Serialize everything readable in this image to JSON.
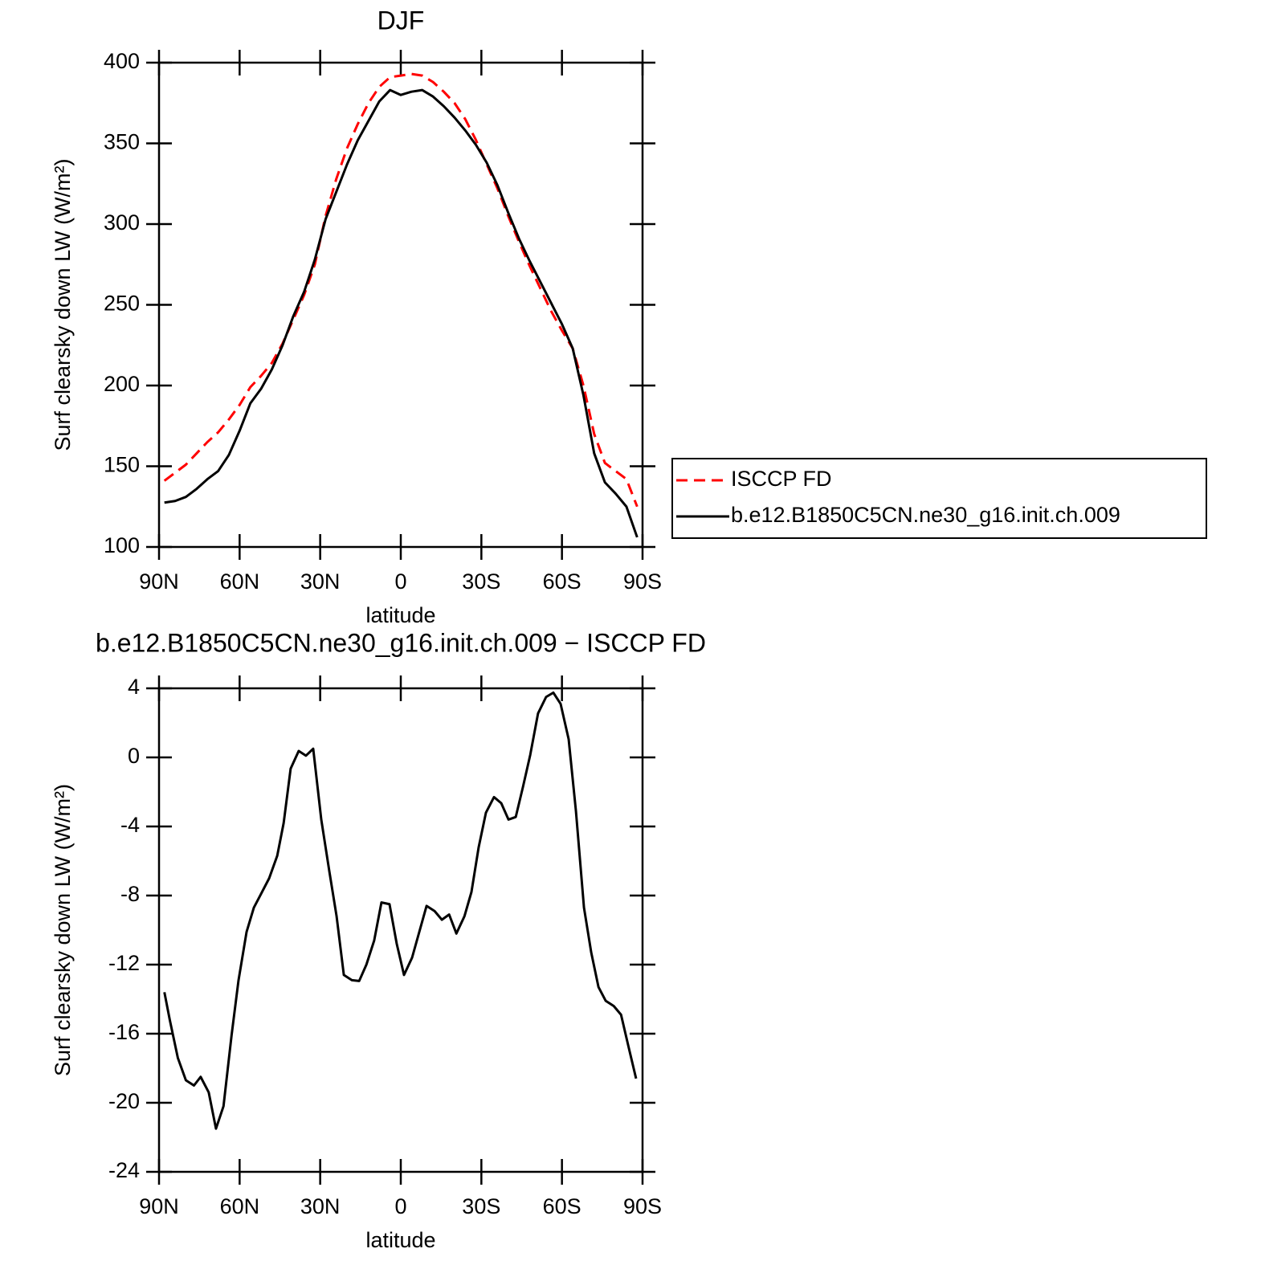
{
  "chart_data": [
    {
      "type": "line",
      "title": "DJF",
      "xlabel": "latitude",
      "ylabel": "Surf clearsky down LW (W/m²)",
      "x": [
        88,
        84,
        80,
        76,
        72,
        68,
        64,
        60,
        56,
        52,
        48,
        44,
        40,
        36,
        32,
        28,
        24,
        20,
        16,
        12,
        8,
        4,
        0,
        -4,
        -8,
        -12,
        -16,
        -20,
        -24,
        -28,
        -32,
        -36,
        -40,
        -44,
        -48,
        -52,
        -56,
        -60,
        -64,
        -68,
        -72,
        -76,
        -80,
        -84,
        -88
      ],
      "series": [
        {
          "name": "ISCCP FD",
          "color": "#ff0000",
          "dashed": true,
          "values": [
            141,
            146,
            151,
            158,
            165,
            171,
            179,
            188,
            199,
            206,
            214,
            226,
            241,
            256,
            275,
            305,
            328,
            347,
            362,
            375,
            385,
            391,
            392,
            393,
            392,
            388,
            382,
            375,
            365,
            352,
            337,
            322,
            305,
            289,
            274,
            260,
            246,
            234,
            223,
            200,
            170,
            152,
            147,
            142,
            125
          ]
        },
        {
          "name": "b.e12.B1850C5CN.ne30_g16.init.ch.009",
          "color": "#000000",
          "dashed": false,
          "values": [
            127.5,
            128.5,
            131,
            136,
            142,
            147,
            157,
            172,
            189,
            198,
            210,
            225,
            243,
            258,
            278,
            303,
            320,
            337,
            352,
            364,
            376,
            383,
            380,
            382,
            383,
            379,
            373,
            366,
            358,
            349,
            338,
            324,
            307,
            291,
            277,
            264,
            251,
            238,
            223,
            194,
            158,
            140,
            133,
            125,
            106
          ]
        }
      ],
      "xlim": [
        90,
        -90
      ],
      "xticks": [
        {
          "value": 90,
          "label": "90N"
        },
        {
          "value": 60,
          "label": "60N"
        },
        {
          "value": 30,
          "label": "30N"
        },
        0,
        {
          "value": -30,
          "label": "30S"
        },
        {
          "value": -60,
          "label": "60S"
        },
        {
          "value": -90,
          "label": "90S"
        }
      ],
      "ylim": [
        100,
        400
      ],
      "yticks": [
        100,
        150,
        200,
        250,
        300,
        350,
        400
      ],
      "legend": "right"
    },
    {
      "type": "line",
      "title": "b.e12.B1850C5CN.ne30_g16.init.ch.009 − ISCCP FD",
      "xlabel": "latitude",
      "ylabel": "Surf clearsky down LW (W/m²)",
      "x": [
        88,
        86,
        83,
        80,
        77,
        74.5,
        71.5,
        68.8,
        66,
        63,
        60.4,
        57.4,
        54.7,
        52,
        49,
        46,
        43.6,
        41,
        38,
        35.3,
        32.6,
        29.6,
        26.6,
        23.9,
        21.2,
        18.2,
        15.5,
        12.8,
        9.9,
        7.2,
        4.2,
        1.5,
        -1.2,
        -4.2,
        -6.9,
        -9.6,
        -12.6,
        -15.3,
        -18,
        -20.7,
        -23.7,
        -26.3,
        -29,
        -31.7,
        -34.7,
        -37.4,
        -40.1,
        -42.8,
        -45.5,
        -48.2,
        -51.1,
        -54.1,
        -56.8,
        -59.5,
        -62.5,
        -65.2,
        -68.2,
        -70.9,
        -73.6,
        -76.3,
        -79.3,
        -82,
        -84.7,
        -87.6
      ],
      "color": "#000000",
      "values": [
        -13.6,
        -15.2,
        -17.4,
        -18.7,
        -19.0,
        -18.5,
        -19.4,
        -21.5,
        -20.2,
        -16.1,
        -12.9,
        -10.1,
        -8.7,
        -7.9,
        -7.0,
        -5.7,
        -3.8,
        -0.65,
        0.37,
        0.1,
        0.5,
        -3.6,
        -6.6,
        -9.2,
        -12.6,
        -12.9,
        -12.95,
        -12.0,
        -10.6,
        -8.4,
        -8.5,
        -10.8,
        -12.6,
        -11.6,
        -10.1,
        -8.6,
        -8.9,
        -9.4,
        -9.1,
        -10.2,
        -9.2,
        -7.8,
        -5.2,
        -3.2,
        -2.3,
        -2.65,
        -3.6,
        -3.45,
        -1.7,
        0.15,
        2.55,
        3.5,
        3.75,
        3.1,
        1.05,
        -3.1,
        -8.7,
        -11.3,
        -13.3,
        -14.1,
        -14.4,
        -14.9,
        -16.7,
        -18.6
      ],
      "xlim": [
        90,
        -90
      ],
      "xticks": [
        {
          "value": 90,
          "label": "90N"
        },
        {
          "value": 60,
          "label": "60N"
        },
        {
          "value": 30,
          "label": "30N"
        },
        0,
        {
          "value": -30,
          "label": "30S"
        },
        {
          "value": -60,
          "label": "60S"
        },
        {
          "value": -90,
          "label": "90S"
        }
      ],
      "ylim": [
        -24,
        4
      ],
      "yticks": [
        -24,
        -20,
        -16,
        -12,
        -8,
        -4,
        0,
        4
      ]
    }
  ]
}
